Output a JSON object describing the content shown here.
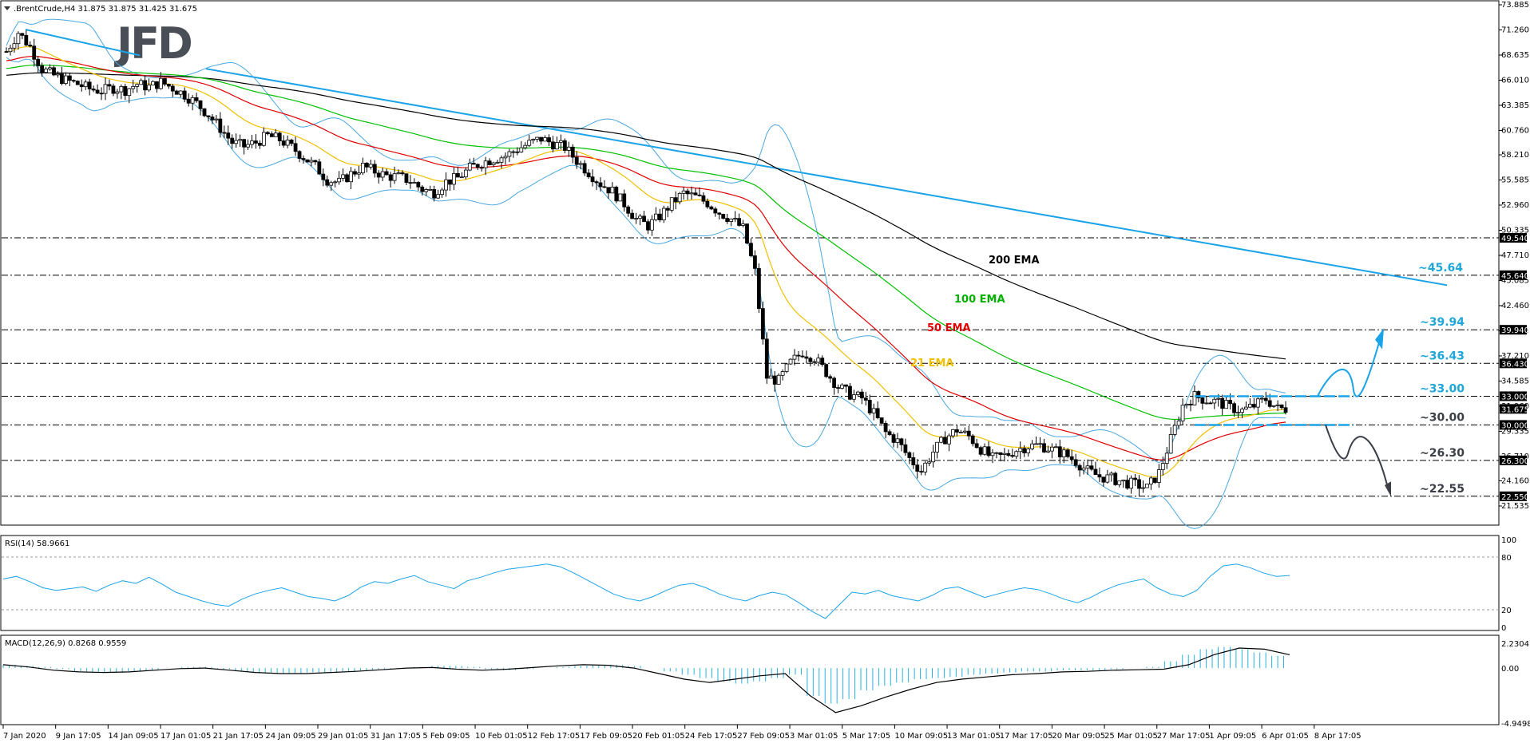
{
  "chart_data": {
    "type": "candlestick",
    "header": ".BrentCrude,H4  31.875 31.875 31.425 31.675",
    "logo": "JFD",
    "price_axis": {
      "ylim": [
        20.2,
        73.885
      ],
      "ticks": [
        "73.885",
        "71.260",
        "68.635",
        "66.010",
        "63.385",
        "60.760",
        "58.210",
        "55.585",
        "52.960",
        "50.335",
        "47.710",
        "45.085",
        "42.460",
        "39.835",
        "37.210",
        "34.585",
        "31.960",
        "29.335",
        "26.710",
        "24.160",
        "21.535"
      ]
    },
    "time_axis": [
      "7 Jan 2020",
      "9 Jan 17:05",
      "14 Jan 09:05",
      "17 Jan 01:05",
      "21 Jan 17:05",
      "24 Jan 09:05",
      "29 Jan 01:05",
      "31 Jan 17:05",
      "5 Feb 09:05",
      "10 Feb 01:05",
      "12 Feb 17:05",
      "17 Feb 09:05",
      "20 Feb 01:05",
      "24 Feb 17:05",
      "27 Feb 09:05",
      "3 Mar 01:05",
      "5 Mar 17:05",
      "10 Mar 09:05",
      "13 Mar 01:05",
      "17 Mar 17:05",
      "20 Mar 09:05",
      "25 Mar 01:05",
      "27 Mar 17:05",
      "1 Apr 09:05",
      "6 Apr 01:05",
      "8 Apr 17:05"
    ],
    "levels": [
      {
        "value": 49.54,
        "tag": "49.540",
        "label": ""
      },
      {
        "value": 45.64,
        "tag": "45.640",
        "label": "~45.64"
      },
      {
        "value": 39.94,
        "tag": "39.940",
        "label": "~39.94"
      },
      {
        "value": 36.43,
        "tag": "36.430",
        "label": "~36.43"
      },
      {
        "value": 33.0,
        "tag": "33.000",
        "label": "~33.00"
      },
      {
        "value": 30.0,
        "tag": "30.000",
        "label": "~30.00"
      },
      {
        "value": 26.3,
        "tag": "26.300",
        "label": "~26.30"
      },
      {
        "value": 22.55,
        "tag": "22.550",
        "label": "~22.55"
      }
    ],
    "current_price": {
      "value": 31.675,
      "tag": "31.675"
    },
    "ema_labels": [
      {
        "name": "200 EMA",
        "color": "#000000"
      },
      {
        "name": "100 EMA",
        "color": "#00c000"
      },
      {
        "name": "50 EMA",
        "color": "#e00000"
      },
      {
        "name": "21 EMA",
        "color": "#f0c000"
      }
    ],
    "close_series": [
      69.0,
      71.0,
      69.5,
      67.2,
      66.5,
      66.0,
      65.6,
      65.1,
      64.9,
      65.2,
      65.0,
      65.6,
      65.3,
      65.8,
      65.2,
      64.5,
      63.6,
      62.4,
      61.0,
      59.5,
      59.1,
      59.5,
      60.2,
      59.8,
      59.0,
      58.0,
      57.0,
      55.6,
      55.3,
      56.2,
      57.0,
      56.5,
      56.0,
      55.9,
      55.5,
      54.6,
      54.3,
      55.4,
      55.8,
      56.8,
      57.4,
      57.8,
      58.1,
      58.8,
      59.4,
      59.9,
      59.4,
      59.0,
      57.6,
      56.4,
      55.2,
      54.4,
      53.1,
      51.5,
      50.8,
      51.8,
      53.2,
      54.2,
      53.8,
      53.2,
      52.2,
      51.5,
      50.5,
      46.0,
      35.0,
      34.6,
      36.5,
      37.6,
      37.0,
      35.5,
      34.0,
      33.2,
      32.8,
      31.2,
      29.2,
      28.3,
      26.5,
      25.2,
      27.2,
      28.6,
      29.5,
      28.8,
      27.5,
      26.5,
      26.8,
      27.4,
      27.8,
      27.9,
      27.4,
      27.0,
      26.2,
      25.2,
      24.6,
      24.4,
      24.0,
      23.8,
      23.4,
      25.0,
      28.5,
      32.0,
      33.0,
      32.6,
      32.4,
      31.8,
      31.5,
      32.0,
      32.7,
      31.7
    ],
    "rsi": {
      "label": "RSI(14) 58.9661",
      "ylim": [
        0,
        100
      ],
      "ticks": [
        "100",
        "80",
        "20",
        "0"
      ],
      "levels": [
        80,
        20
      ],
      "values": [
        55,
        58,
        52,
        45,
        42,
        44,
        46,
        41,
        48,
        53,
        50,
        57,
        49,
        40,
        35,
        30,
        26,
        24,
        32,
        38,
        42,
        45,
        40,
        35,
        33,
        30,
        36,
        46,
        52,
        50,
        55,
        59,
        52,
        48,
        44,
        53,
        57,
        62,
        66,
        68,
        70,
        72,
        69,
        62,
        54,
        46,
        38,
        33,
        30,
        35,
        42,
        48,
        50,
        45,
        38,
        33,
        30,
        36,
        40,
        37,
        28,
        18,
        10,
        25,
        40,
        38,
        42,
        36,
        33,
        30,
        36,
        44,
        46,
        40,
        34,
        38,
        42,
        45,
        43,
        38,
        32,
        28,
        34,
        42,
        48,
        52,
        55,
        45,
        38,
        35,
        42,
        58,
        70,
        72,
        68,
        62,
        58,
        59
      ]
    },
    "macd": {
      "label": "MACD(12,26,9) 0.8268 0.9559",
      "ylim": [
        -4.9498,
        2.2304
      ],
      "ticks": [
        "2.2304",
        "0.00",
        "-4.9498"
      ],
      "hist": [
        0.3,
        0.2,
        0.1,
        -0.1,
        -0.3,
        -0.4,
        -0.4,
        -0.3,
        -0.2,
        0.0,
        0.1,
        0.1,
        -0.1,
        -0.3,
        -0.4,
        -0.5,
        -0.5,
        -0.4,
        -0.4,
        -0.3,
        -0.2,
        -0.1,
        0.0,
        0.1,
        0.2,
        0.2,
        0.1,
        -0.1,
        -0.2,
        -0.1,
        0.0,
        0.1,
        0.2,
        0.3,
        0.3,
        0.2,
        0.0,
        -0.3,
        -0.6,
        -0.9,
        -1.2,
        -1.4,
        -1.2,
        -0.9,
        -0.6,
        -2.5,
        -3.2,
        -2.8,
        -2.0,
        -1.6,
        -1.3,
        -1.0,
        -0.9,
        -0.8,
        -0.6,
        -0.5,
        -0.4,
        -0.3,
        -0.3,
        -0.2,
        -0.2,
        -0.2,
        -0.1,
        0.0,
        0.1,
        0.6,
        1.2,
        1.7,
        1.9,
        1.7,
        1.4,
        1.1
      ],
      "line": [
        0.3,
        0.1,
        -0.2,
        -0.35,
        -0.4,
        -0.35,
        -0.2,
        -0.05,
        0.0,
        -0.2,
        -0.4,
        -0.5,
        -0.5,
        -0.4,
        -0.3,
        -0.15,
        0.0,
        0.05,
        -0.1,
        -0.2,
        -0.1,
        0.05,
        0.2,
        0.3,
        0.25,
        0.0,
        -0.5,
        -1.0,
        -1.3,
        -1.0,
        -0.7,
        -0.5,
        -2.5,
        -4.0,
        -3.4,
        -2.6,
        -1.9,
        -1.3,
        -1.0,
        -0.8,
        -0.6,
        -0.5,
        -0.35,
        -0.3,
        -0.2,
        -0.15,
        -0.1,
        0.3,
        1.2,
        1.8,
        1.7,
        1.2
      ]
    }
  }
}
